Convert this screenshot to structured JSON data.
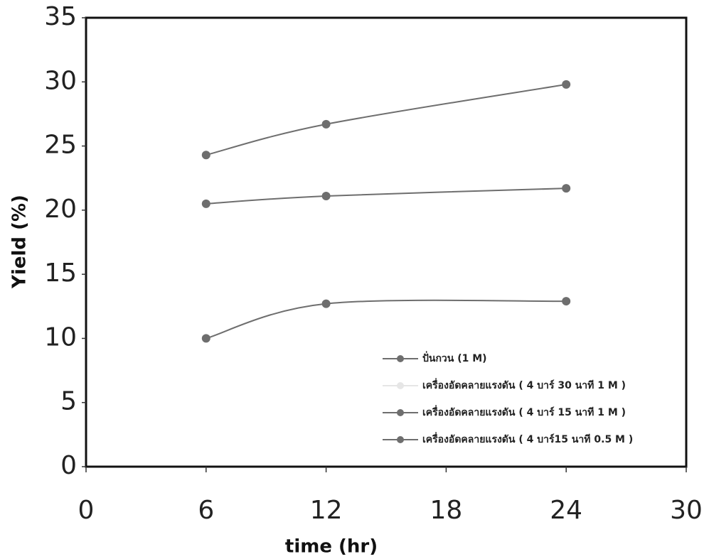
{
  "chart_data": {
    "type": "line",
    "x_label": "time (hr)",
    "y_label": "Yield (%)",
    "x": [
      6,
      12,
      24
    ],
    "series": [
      {
        "name": "ปั่นกวน (1 M)",
        "color": "#6e6e6e",
        "values": [
          10.0,
          12.7,
          12.9
        ]
      },
      {
        "name": "เครื่องอัดคลายแรงดัน ( 4 บาร์ 30 นาที 1 M )",
        "color": "#e6e6e6",
        "values": [
          null,
          null,
          null
        ]
      },
      {
        "name": "เครื่องอัดคลายแรงดัน ( 4 บาร์ 15 นาที 1 M )",
        "color": "#6e6e6e",
        "values": [
          20.5,
          21.1,
          21.7
        ]
      },
      {
        "name": "เครื่องอัดคลายแรงดัน ( 4 บาร์15 นาที 0.5 M )",
        "color": "#6e6e6e",
        "values": [
          24.3,
          26.7,
          29.8
        ]
      }
    ],
    "xlim": [
      0,
      30
    ],
    "xticks": [
      0,
      6,
      12,
      18,
      24,
      30
    ],
    "ylim": [
      0,
      35
    ],
    "yticks": [
      0,
      5,
      10,
      15,
      20,
      25,
      30,
      35
    ]
  }
}
